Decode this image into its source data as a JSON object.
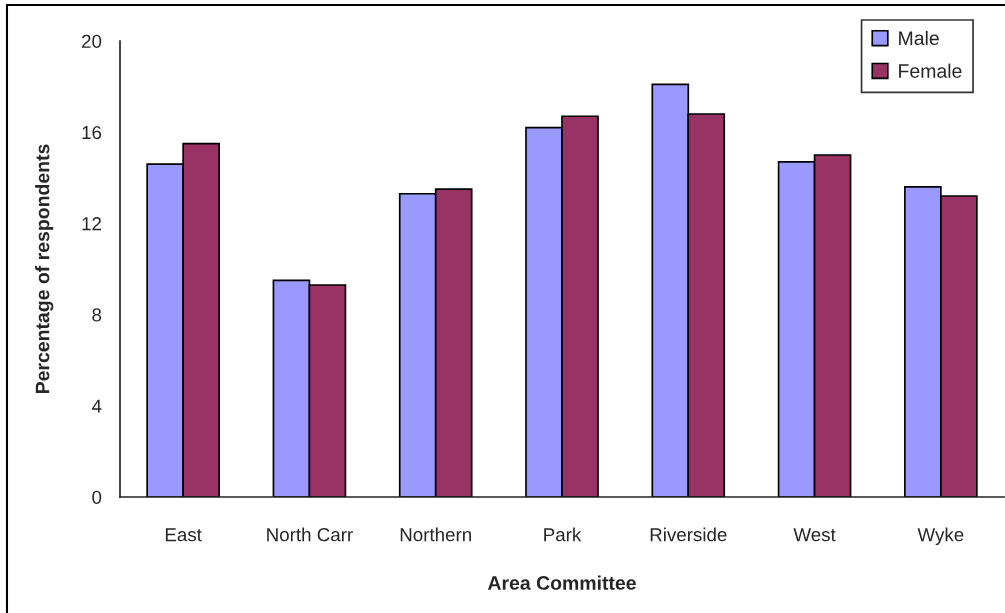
{
  "chart_data": {
    "type": "bar",
    "xlabel": "Area Committee",
    "ylabel": "Percentage of respondents",
    "categories": [
      "East",
      "North Carr",
      "Northern",
      "Park",
      "Riverside",
      "West",
      "Wyke"
    ],
    "series": [
      {
        "name": "Male",
        "color": "#9999ff",
        "values": [
          14.6,
          9.5,
          13.3,
          16.2,
          18.1,
          14.7,
          13.6
        ]
      },
      {
        "name": "Female",
        "color": "#993366",
        "values": [
          15.5,
          9.3,
          13.5,
          16.7,
          16.8,
          15.0,
          13.2
        ]
      }
    ],
    "ylim": [
      0,
      20
    ],
    "yticks": [
      0,
      4,
      8,
      12,
      16,
      20
    ],
    "legend": "top right"
  }
}
